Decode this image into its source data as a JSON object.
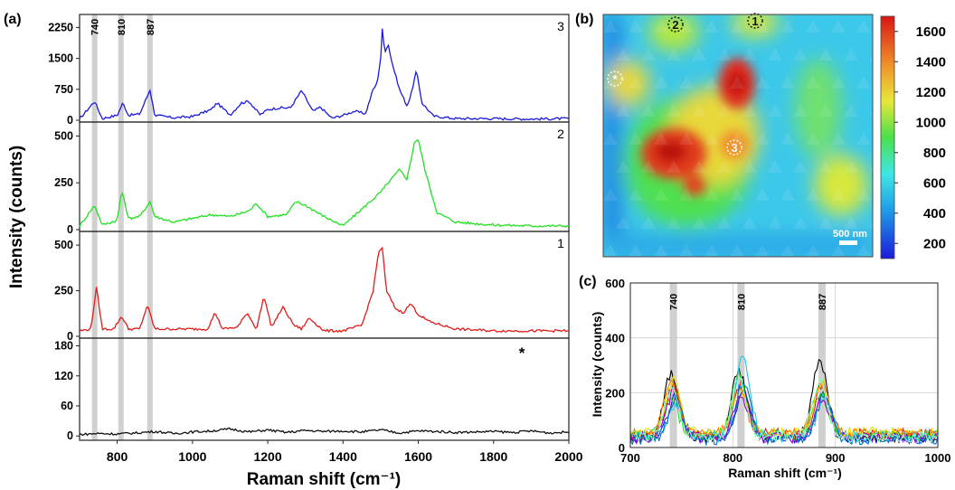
{
  "panels": {
    "a": {
      "label": "(a)"
    },
    "b": {
      "label": "(b)"
    },
    "c": {
      "label": "(c)"
    }
  },
  "chart_data": [
    {
      "id": "a",
      "type": "line",
      "xlabel": "Raman shift (cm⁻¹)",
      "ylabel": "Intensity (counts)",
      "xlim": [
        700,
        2000
      ],
      "xticks": [
        "800",
        "1000",
        "1200",
        "1400",
        "1600",
        "1800",
        "2000"
      ],
      "xtick_values": [
        800,
        1000,
        1200,
        1400,
        1600,
        1800,
        2000
      ],
      "highlight_bands": [
        {
          "x": 740,
          "label": "740"
        },
        {
          "x": 810,
          "label": "810"
        },
        {
          "x": 887,
          "label": "887"
        }
      ],
      "subplots": [
        {
          "label": "3",
          "color": "#1a1adc",
          "ylim": [
            0,
            2500
          ],
          "yticks": [
            "0",
            "750",
            "1500",
            "2250"
          ],
          "ytick_values": [
            0,
            750,
            1500,
            2250
          ],
          "x": [
            700,
            740,
            760,
            800,
            815,
            830,
            860,
            887,
            900,
            950,
            1000,
            1050,
            1065,
            1100,
            1130,
            1150,
            1180,
            1200,
            1230,
            1260,
            1290,
            1320,
            1340,
            1370,
            1400,
            1430,
            1460,
            1480,
            1490,
            1500,
            1505,
            1510,
            1520,
            1530,
            1550,
            1570,
            1580,
            1595,
            1610,
            1640,
            1700,
            1800,
            1900,
            2000
          ],
          "y": [
            30,
            460,
            40,
            120,
            420,
            120,
            150,
            740,
            120,
            60,
            90,
            260,
            420,
            130,
            420,
            460,
            130,
            260,
            300,
            300,
            720,
            210,
            320,
            50,
            120,
            220,
            160,
            750,
            880,
            1500,
            2300,
            1650,
            1850,
            1400,
            750,
            350,
            600,
            1200,
            420,
            100,
            40,
            40,
            30,
            40
          ]
        },
        {
          "label": "2",
          "color": "#22e022",
          "ylim": [
            0,
            560
          ],
          "yticks": [
            "0",
            "250",
            "500"
          ],
          "ytick_values": [
            0,
            250,
            500
          ],
          "x": [
            700,
            740,
            760,
            800,
            812,
            830,
            860,
            887,
            900,
            950,
            1000,
            1050,
            1100,
            1150,
            1170,
            1200,
            1250,
            1275,
            1300,
            1350,
            1400,
            1450,
            1500,
            1520,
            1550,
            1570,
            1590,
            1600,
            1620,
            1650,
            1700,
            1800,
            1900,
            2000
          ],
          "y": [
            20,
            130,
            25,
            50,
            210,
            60,
            70,
            150,
            70,
            40,
            60,
            80,
            70,
            100,
            140,
            70,
            80,
            150,
            130,
            70,
            20,
            110,
            200,
            250,
            320,
            270,
            470,
            480,
            300,
            90,
            40,
            25,
            20,
            20
          ]
        },
        {
          "label": "1",
          "color": "#e21a1a",
          "ylim": [
            0,
            560
          ],
          "yticks": [
            "0",
            "250",
            "500"
          ],
          "ytick_values": [
            0,
            250,
            500
          ],
          "x": [
            700,
            730,
            745,
            760,
            790,
            812,
            830,
            860,
            880,
            900,
            1000,
            1040,
            1060,
            1080,
            1120,
            1145,
            1170,
            1190,
            1210,
            1240,
            1270,
            1290,
            1310,
            1350,
            1400,
            1450,
            1480,
            1495,
            1505,
            1515,
            1540,
            1560,
            1580,
            1600,
            1630,
            1700,
            1800,
            1900,
            1980
          ],
          "y": [
            30,
            40,
            270,
            40,
            40,
            110,
            40,
            40,
            170,
            40,
            40,
            40,
            130,
            40,
            50,
            130,
            40,
            220,
            50,
            160,
            60,
            40,
            100,
            30,
            30,
            60,
            250,
            470,
            480,
            250,
            150,
            130,
            180,
            120,
            80,
            40,
            30,
            30,
            30
          ]
        },
        {
          "label": "*",
          "color": "#111111",
          "ylim": [
            -5,
            190
          ],
          "yticks": [
            "0",
            "60",
            "120",
            "180"
          ],
          "ytick_values": [
            0,
            60,
            120,
            180
          ],
          "x": [
            700,
            750,
            800,
            850,
            900,
            950,
            1000,
            1050,
            1100,
            1150,
            1200,
            1250,
            1300,
            1350,
            1400,
            1450,
            1500,
            1550,
            1600,
            1650,
            1700,
            1750,
            1800,
            1850,
            1900,
            1950,
            2000
          ],
          "y": [
            3,
            5,
            4,
            6,
            9,
            5,
            8,
            10,
            14,
            8,
            12,
            7,
            11,
            9,
            10,
            8,
            12,
            6,
            10,
            9,
            7,
            8,
            9,
            7,
            10,
            6,
            8
          ]
        }
      ]
    },
    {
      "id": "b",
      "type": "heatmap",
      "colorbar_ticks": [
        "200",
        "400",
        "600",
        "800",
        "1000",
        "1200",
        "1400",
        "1600"
      ],
      "colorbar_values": [
        200,
        400,
        600,
        800,
        1000,
        1200,
        1400,
        1600
      ],
      "colorbar_range": [
        100,
        1700
      ],
      "scale_bar_label": "500 nm",
      "markers": [
        "2",
        "1",
        "*",
        "3"
      ]
    },
    {
      "id": "c",
      "type": "line",
      "xlabel": "Raman shift (cm⁻¹)",
      "ylabel": "Intensity (counts)",
      "xlim": [
        700,
        1000
      ],
      "ylim": [
        0,
        600
      ],
      "xticks": [
        "700",
        "800",
        "900",
        "1000"
      ],
      "xtick_values": [
        700,
        800,
        900,
        1000
      ],
      "yticks": [
        "0",
        "200",
        "400",
        "600"
      ],
      "ytick_values": [
        0,
        200,
        400,
        600
      ],
      "grid": true,
      "highlight_bands": [
        {
          "x": 742,
          "label": "740"
        },
        {
          "x": 808,
          "label": "810"
        },
        {
          "x": 887,
          "label": "887"
        }
      ],
      "series": [
        {
          "color": "#000000",
          "peaks": [
            270,
            280,
            320
          ],
          "base": 40
        },
        {
          "color": "#e21a1a",
          "peaks": [
            230,
            230,
            230
          ],
          "base": 50
        },
        {
          "color": "#1a1adc",
          "peaks": [
            180,
            200,
            190
          ],
          "base": 35
        },
        {
          "color": "#22e022",
          "peaks": [
            170,
            260,
            200
          ],
          "base": 45
        },
        {
          "color": "#e8e000",
          "peaks": [
            250,
            200,
            240
          ],
          "base": 55
        },
        {
          "color": "#20c8e8",
          "peaks": [
            160,
            330,
            170
          ],
          "base": 40
        },
        {
          "color": "#ff8000",
          "peaks": [
            240,
            220,
            230
          ],
          "base": 50
        },
        {
          "color": "#9900cc",
          "peaks": [
            200,
            190,
            175
          ],
          "base": 35
        },
        {
          "color": "#0070c0",
          "peaks": [
            175,
            240,
            190
          ],
          "base": 30
        },
        {
          "color": "#80ffc0",
          "peaks": [
            215,
            250,
            250
          ],
          "base": 40
        }
      ]
    }
  ]
}
